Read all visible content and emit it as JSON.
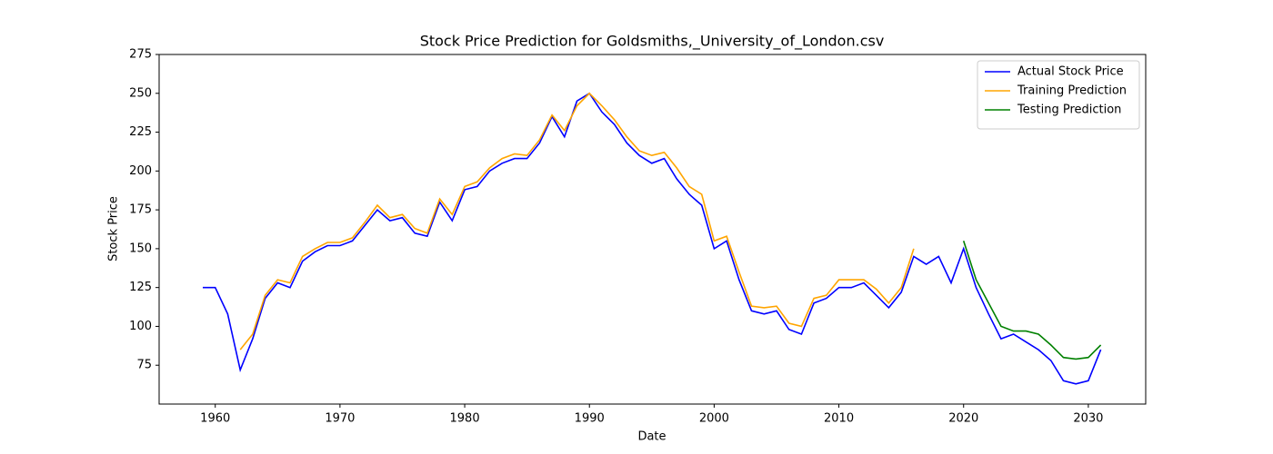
{
  "chart_data": {
    "type": "line",
    "title": "Stock Price Prediction for Goldsmiths,_University_of_London.csv",
    "x_label": "Date",
    "y_label": "Stock Price",
    "x": [
      1959,
      1960,
      1961,
      1962,
      1963,
      1964,
      1965,
      1966,
      1967,
      1968,
      1969,
      1970,
      1971,
      1972,
      1973,
      1974,
      1975,
      1976,
      1977,
      1978,
      1979,
      1980,
      1981,
      1982,
      1983,
      1984,
      1985,
      1986,
      1987,
      1988,
      1989,
      1990,
      1991,
      1992,
      1993,
      1994,
      1995,
      1996,
      1997,
      1998,
      1999,
      2000,
      2001,
      2002,
      2003,
      2004,
      2005,
      2006,
      2007,
      2008,
      2009,
      2010,
      2011,
      2012,
      2013,
      2014,
      2015,
      2016,
      2017,
      2018,
      2019,
      2020,
      2021,
      2022,
      2023,
      2024,
      2025,
      2026,
      2027,
      2028,
      2029,
      2030,
      2031
    ],
    "series": [
      {
        "name": "Actual Stock Price",
        "color": "#0000ff",
        "values": [
          125,
          125,
          108,
          72,
          92,
          118,
          128,
          125,
          142,
          148,
          152,
          152,
          155,
          165,
          175,
          168,
          170,
          160,
          158,
          180,
          168,
          188,
          190,
          200,
          205,
          208,
          208,
          218,
          235,
          222,
          245,
          250,
          238,
          230,
          218,
          210,
          205,
          208,
          195,
          185,
          178,
          150,
          155,
          130,
          110,
          108,
          110,
          98,
          95,
          115,
          118,
          125,
          125,
          128,
          120,
          112,
          122,
          145,
          140,
          145,
          128,
          150,
          125,
          108,
          92,
          95,
          90,
          85,
          78,
          65,
          63,
          65,
          85
        ]
      },
      {
        "name": "Training Prediction",
        "color": "#ffa500",
        "values": [
          null,
          null,
          null,
          85,
          95,
          120,
          130,
          128,
          145,
          150,
          154,
          154,
          157,
          167,
          178,
          170,
          172,
          163,
          160,
          182,
          172,
          190,
          193,
          202,
          208,
          211,
          210,
          220,
          236,
          226,
          242,
          250,
          242,
          233,
          222,
          213,
          210,
          212,
          202,
          190,
          185,
          155,
          158,
          135,
          113,
          112,
          113,
          102,
          100,
          118,
          120,
          130,
          130,
          130,
          124,
          115,
          125,
          150,
          null,
          null,
          null,
          null,
          null,
          null,
          null,
          null,
          null,
          null,
          null,
          null,
          null,
          null,
          null
        ]
      },
      {
        "name": "Testing Prediction",
        "color": "#008000",
        "values": [
          null,
          null,
          null,
          null,
          null,
          null,
          null,
          null,
          null,
          null,
          null,
          null,
          null,
          null,
          null,
          null,
          null,
          null,
          null,
          null,
          null,
          null,
          null,
          null,
          null,
          null,
          null,
          null,
          null,
          null,
          null,
          null,
          null,
          null,
          null,
          null,
          null,
          null,
          null,
          null,
          null,
          null,
          null,
          null,
          null,
          null,
          null,
          null,
          null,
          null,
          null,
          null,
          null,
          null,
          null,
          null,
          null,
          null,
          null,
          null,
          null,
          155,
          130,
          115,
          100,
          97,
          97,
          95,
          88,
          80,
          79,
          80,
          88
        ]
      }
    ],
    "xlim": [
      1955.5,
      2034.6
    ],
    "xticks": [
      1960,
      1970,
      1980,
      1990,
      2000,
      2010,
      2020,
      2030
    ],
    "ylim": [
      50,
      275
    ],
    "yticks": [
      75,
      100,
      125,
      150,
      175,
      200,
      225,
      250,
      275
    ],
    "legend": "upper right"
  }
}
